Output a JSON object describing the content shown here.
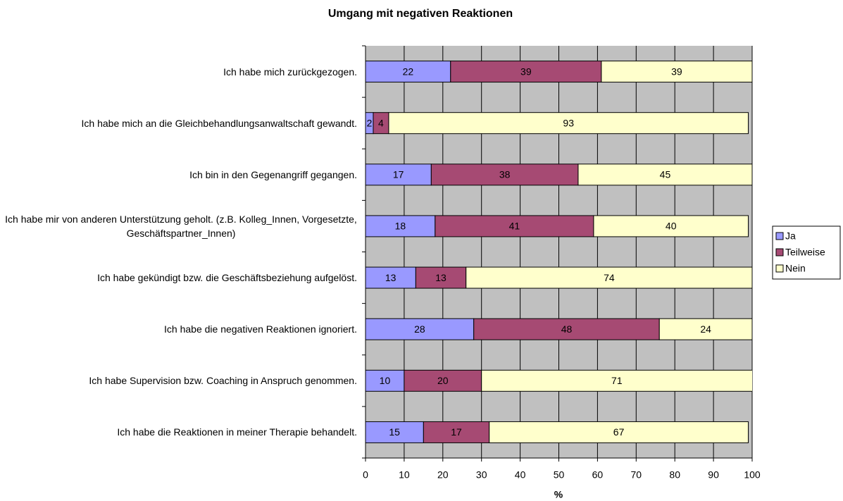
{
  "chart_data": {
    "type": "bar",
    "orientation": "horizontal",
    "stacked": true,
    "title": "Umgang mit negativen Reaktionen",
    "x_label": "%",
    "categories": [
      "Ich habe mich zurückgezogen.",
      "Ich habe mich an die Gleichbehandlungsanwaltschaft gewandt.",
      "Ich bin in den Gegenangriff gegangen.",
      "Ich habe mir von anderen Unterstützung geholt. (z.B. Kolleg_Innen, Vorgesetzte, Geschäftspartner_Innen)",
      "Ich habe gekündigt bzw. die Geschäftsbeziehung aufgelöst.",
      "Ich habe die negativen Reaktionen ignoriert.",
      "Ich habe Supervision bzw. Coaching in Anspruch genommen.",
      "Ich habe die Reaktionen in meiner Therapie behandelt."
    ],
    "series": [
      {
        "name": "Ja",
        "color": "#9999ff",
        "values": [
          22,
          2,
          17,
          18,
          13,
          28,
          10,
          15
        ]
      },
      {
        "name": "Teilweise",
        "color": "#a64a73",
        "values": [
          39,
          4,
          38,
          41,
          13,
          48,
          20,
          17
        ]
      },
      {
        "name": "Nein",
        "color": "#ffffcc",
        "values": [
          39,
          93,
          45,
          40,
          74,
          24,
          71,
          67
        ]
      }
    ],
    "xlim": [
      0,
      100
    ],
    "xticks": [
      0,
      10,
      20,
      30,
      40,
      50,
      60,
      70,
      80,
      90,
      100
    ],
    "grid": true,
    "plot_background": "#c0c0c0",
    "legend": "right"
  }
}
